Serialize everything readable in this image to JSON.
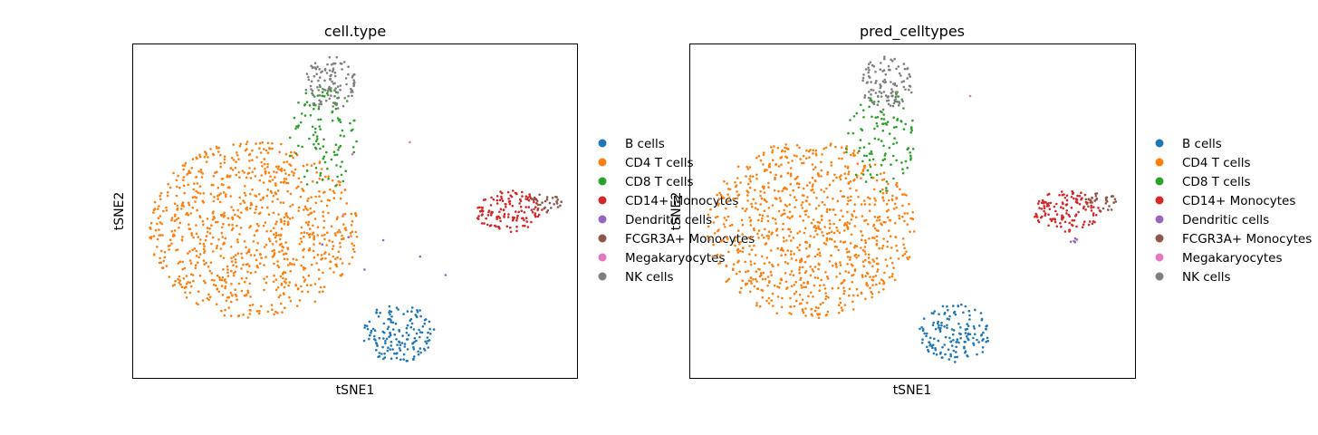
{
  "chart_data": [
    {
      "type": "scatter",
      "title": "cell.type",
      "xlabel": "tSNE1",
      "ylabel": "tSNE2",
      "xticks": [],
      "yticks": [],
      "grid": false,
      "legend_placement": "right, outside plot",
      "series": [
        {
          "name": "B cells",
          "color": "#1f77b4",
          "x_range": [
            400,
            480
          ],
          "y_range": [
            335,
            400
          ],
          "shape": "compact blob"
        },
        {
          "name": "CD4 T cells",
          "color": "#ff7f0e",
          "x_range": [
            165,
            395
          ],
          "y_range": [
            155,
            352
          ],
          "shape": "large ellipse"
        },
        {
          "name": "CD8 T cells",
          "color": "#2ca02c",
          "x_range": [
            318,
            395
          ],
          "y_range": [
            95,
            212
          ],
          "shape": "upper cluster with scattered points"
        },
        {
          "name": "CD14+ Monocytes",
          "color": "#d62728",
          "x_range": [
            525,
            600
          ],
          "y_range": [
            210,
            256
          ],
          "shape": "compact cluster"
        },
        {
          "name": "Dendritic cells",
          "color": "#9467bd",
          "x_range": [
            340,
            575
          ],
          "y_range": [
            240,
            320
          ],
          "shape": "few points"
        },
        {
          "name": "FCGR3A+ Monocytes",
          "color": "#8c564b",
          "x_range": [
            580,
            620
          ],
          "y_range": [
            212,
            235
          ],
          "shape": "small cluster"
        },
        {
          "name": "Megakaryocytes",
          "color": "#e377c2",
          "x_range": [
            340,
            460
          ],
          "y_range": [
            105,
            248
          ],
          "shape": "very few points"
        },
        {
          "name": "NK cells",
          "color": "#7f7f7f",
          "x_range": [
            335,
            393
          ],
          "y_range": [
            62,
            122
          ],
          "shape": "top cluster"
        }
      ]
    },
    {
      "type": "scatter",
      "title": "pred_celltypes",
      "xlabel": "tSNE1",
      "ylabel": "tSNE2",
      "xticks": [],
      "yticks": [],
      "grid": false,
      "legend_placement": "right, outside plot",
      "series": [
        {
          "name": "B cells",
          "color": "#1f77b4",
          "x_range": [
            1015,
            1095
          ],
          "y_range": [
            335,
            400
          ],
          "shape": "compact blob"
        },
        {
          "name": "CD4 T cells",
          "color": "#ff7f0e",
          "x_range": [
            780,
            1010
          ],
          "y_range": [
            155,
            352
          ],
          "shape": "large ellipse"
        },
        {
          "name": "CD8 T cells",
          "color": "#2ca02c",
          "x_range": [
            933,
            1010
          ],
          "y_range": [
            95,
            212
          ],
          "shape": "upper cluster with scattered points"
        },
        {
          "name": "CD14+ Monocytes",
          "color": "#d62728",
          "x_range": [
            1140,
            1215
          ],
          "y_range": [
            210,
            256
          ],
          "shape": "compact cluster"
        },
        {
          "name": "Dendritic cells",
          "color": "#9467bd",
          "x_range": [
            1180,
            1190
          ],
          "y_range": [
            262,
            268
          ],
          "shape": "few points"
        },
        {
          "name": "FCGR3A+ Monocytes",
          "color": "#8c564b",
          "x_range": [
            1195,
            1235
          ],
          "y_range": [
            212,
            235
          ],
          "shape": "small cluster"
        },
        {
          "name": "Megakaryocytes",
          "color": "#e377c2",
          "x_range": [
            1070,
            1072
          ],
          "y_range": [
            105,
            107
          ],
          "shape": "single point"
        },
        {
          "name": "NK cells",
          "color": "#7f7f7f",
          "x_range": [
            950,
            1008
          ],
          "y_range": [
            62,
            122
          ],
          "shape": "top cluster"
        }
      ]
    }
  ]
}
